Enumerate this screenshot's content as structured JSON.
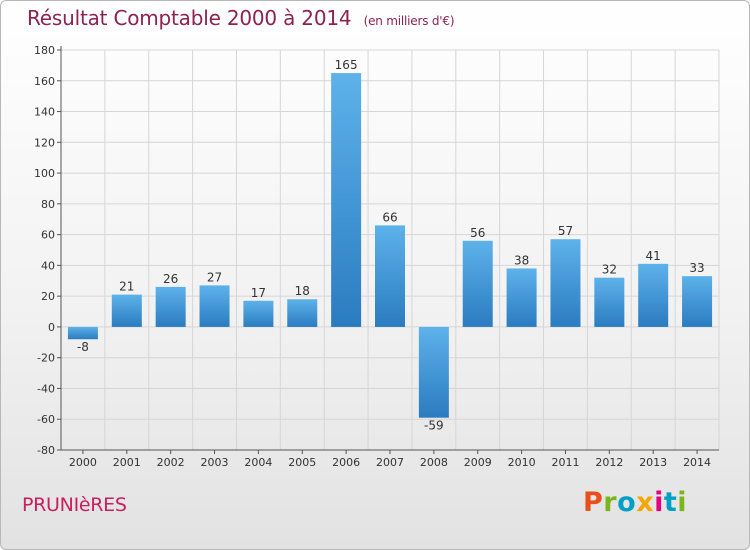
{
  "header": {
    "title": "Résultat Comptable 2000 à 2014",
    "subtitle": "(en milliers d'€)"
  },
  "footer": {
    "commune": "PRUNIèRES",
    "brand_letters": [
      "P",
      "r",
      "o",
      "x",
      "i",
      "t",
      "i"
    ],
    "brand_colors": [
      "#e94e1b",
      "#7ab51d",
      "#00a0c6",
      "#f7a600",
      "#e6007e",
      "#00a0c6",
      "#7ab51d"
    ]
  },
  "chart_data": {
    "type": "bar",
    "title": "Résultat Comptable 2000 à 2014",
    "subtitle": "(en milliers d'€)",
    "xlabel": "",
    "ylabel": "",
    "categories": [
      "2000",
      "2001",
      "2002",
      "2003",
      "2004",
      "2005",
      "2006",
      "2007",
      "2008",
      "2009",
      "2010",
      "2011",
      "2012",
      "2013",
      "2014"
    ],
    "values": [
      -8,
      21,
      26,
      27,
      17,
      18,
      165,
      66,
      -59,
      56,
      38,
      57,
      32,
      41,
      33
    ],
    "ylim": [
      -80,
      180
    ],
    "yticks": [
      180,
      160,
      140,
      120,
      100,
      80,
      60,
      40,
      20,
      0,
      -20,
      -40,
      -60,
      -80
    ],
    "grid": true,
    "bar_color_light": "#5eb2ea",
    "bar_color_dark": "#2a7cc0"
  }
}
